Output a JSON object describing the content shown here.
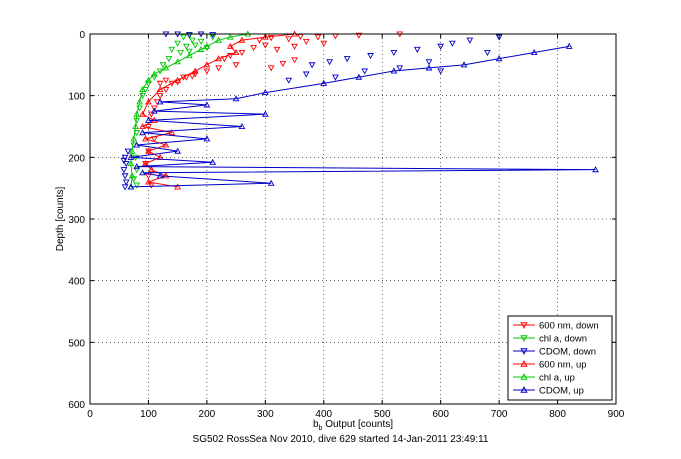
{
  "footer": "SG502 RossSea Nov 2010, dive 629 started 14-Jan-2011 23:49:11",
  "chart_data": {
    "type": "scatter",
    "xlabel_main": "b",
    "xlabel_sub": "b",
    "xlabel_rest": " Output [counts]",
    "ylabel": "Depth [counts]",
    "xlim": [
      0,
      900
    ],
    "ylim": [
      0,
      600
    ],
    "y_reversed": true,
    "grid": true,
    "grid_style": "dotted",
    "legend_position": "bottom-right",
    "xticks": [
      0,
      100,
      200,
      300,
      400,
      500,
      600,
      700,
      800,
      900
    ],
    "yticks": [
      0,
      100,
      200,
      300,
      400,
      500,
      600
    ],
    "series": [
      {
        "name": "600 nm, down",
        "color": "#ff0000",
        "marker": "triangle-down",
        "line": false,
        "points": [
          [
            530,
            0
          ],
          [
            460,
            2
          ],
          [
            420,
            3
          ],
          [
            390,
            5
          ],
          [
            360,
            4
          ],
          [
            340,
            8
          ],
          [
            310,
            6
          ],
          [
            290,
            10
          ],
          [
            400,
            15
          ],
          [
            370,
            12
          ],
          [
            350,
            20
          ],
          [
            320,
            25
          ],
          [
            300,
            18
          ],
          [
            280,
            22
          ],
          [
            260,
            30
          ],
          [
            240,
            35
          ],
          [
            230,
            40
          ],
          [
            350,
            42
          ],
          [
            330,
            48
          ],
          [
            310,
            55
          ],
          [
            250,
            50
          ],
          [
            220,
            55
          ],
          [
            200,
            60
          ],
          [
            180,
            65
          ],
          [
            160,
            70
          ],
          [
            140,
            80
          ],
          [
            130,
            90
          ],
          [
            120,
            100
          ],
          [
            115,
            110
          ],
          [
            110,
            120
          ],
          [
            105,
            130
          ],
          [
            100,
            150
          ],
          [
            110,
            170
          ],
          [
            100,
            190
          ],
          [
            95,
            210
          ],
          [
            100,
            230
          ],
          [
            105,
            245
          ],
          [
            120,
            80
          ],
          [
            130,
            75
          ],
          [
            150,
            78
          ],
          [
            165,
            70
          ],
          [
            175,
            68
          ]
        ]
      },
      {
        "name": "chl a, down",
        "color": "#00c800",
        "marker": "triangle-down",
        "line": false,
        "points": [
          [
            170,
            2
          ],
          [
            160,
            5
          ],
          [
            175,
            10
          ],
          [
            150,
            15
          ],
          [
            165,
            20
          ],
          [
            140,
            25
          ],
          [
            155,
            30
          ],
          [
            135,
            40
          ],
          [
            125,
            50
          ],
          [
            120,
            60
          ],
          [
            110,
            70
          ],
          [
            100,
            80
          ],
          [
            95,
            90
          ],
          [
            90,
            100
          ],
          [
            85,
            120
          ],
          [
            80,
            140
          ],
          [
            80,
            160
          ],
          [
            75,
            180
          ],
          [
            78,
            200
          ],
          [
            80,
            220
          ],
          [
            75,
            235
          ],
          [
            80,
            245
          ],
          [
            210,
            5
          ],
          [
            190,
            12
          ],
          [
            180,
            18
          ],
          [
            200,
            22
          ],
          [
            170,
            28
          ]
        ]
      },
      {
        "name": "CDOM, down",
        "color": "#0000c8",
        "marker": "triangle-down",
        "line": false,
        "points": [
          [
            700,
            5
          ],
          [
            650,
            10
          ],
          [
            620,
            15
          ],
          [
            600,
            20
          ],
          [
            560,
            25
          ],
          [
            520,
            30
          ],
          [
            480,
            35
          ],
          [
            440,
            40
          ],
          [
            410,
            45
          ],
          [
            380,
            50
          ],
          [
            680,
            30
          ],
          [
            580,
            45
          ],
          [
            530,
            55
          ],
          [
            470,
            60
          ],
          [
            420,
            70
          ],
          [
            370,
            65
          ],
          [
            340,
            75
          ],
          [
            600,
            60
          ],
          [
            130,
            0
          ],
          [
            150,
            0
          ],
          [
            170,
            1
          ],
          [
            190,
            0
          ],
          [
            210,
            1
          ],
          [
            60,
            200
          ],
          [
            62,
            210
          ],
          [
            58,
            220
          ],
          [
            60,
            230
          ],
          [
            62,
            240
          ],
          [
            60,
            248
          ],
          [
            65,
            190
          ],
          [
            58,
            205
          ]
        ]
      },
      {
        "name": "600 nm, up",
        "color": "#ff0000",
        "marker": "triangle-up",
        "line": true,
        "points": [
          [
            350,
            0
          ],
          [
            300,
            5
          ],
          [
            260,
            10
          ],
          [
            240,
            20
          ],
          [
            250,
            30
          ],
          [
            220,
            40
          ],
          [
            200,
            50
          ],
          [
            180,
            60
          ],
          [
            150,
            75
          ],
          [
            120,
            90
          ],
          [
            100,
            110
          ],
          [
            90,
            130
          ],
          [
            110,
            140
          ],
          [
            90,
            150
          ],
          [
            140,
            160
          ],
          [
            95,
            170
          ],
          [
            130,
            180
          ],
          [
            100,
            190
          ],
          [
            120,
            200
          ],
          [
            95,
            210
          ],
          [
            105,
            220
          ],
          [
            130,
            230
          ],
          [
            100,
            240
          ],
          [
            150,
            248
          ]
        ]
      },
      {
        "name": "chl a, up",
        "color": "#00c800",
        "marker": "triangle-up",
        "line": true,
        "points": [
          [
            270,
            0
          ],
          [
            240,
            5
          ],
          [
            220,
            10
          ],
          [
            200,
            20
          ],
          [
            190,
            25
          ],
          [
            170,
            35
          ],
          [
            150,
            45
          ],
          [
            130,
            55
          ],
          [
            110,
            65
          ],
          [
            100,
            75
          ],
          [
            90,
            90
          ],
          [
            85,
            110
          ],
          [
            80,
            130
          ],
          [
            78,
            150
          ],
          [
            75,
            170
          ],
          [
            72,
            190
          ],
          [
            70,
            210
          ],
          [
            72,
            230
          ],
          [
            70,
            248
          ]
        ]
      },
      {
        "name": "CDOM, up",
        "color": "#0000c8",
        "marker": "triangle-up",
        "line": true,
        "points": [
          [
            820,
            20
          ],
          [
            760,
            30
          ],
          [
            700,
            40
          ],
          [
            640,
            50
          ],
          [
            580,
            55
          ],
          [
            520,
            60
          ],
          [
            460,
            70
          ],
          [
            400,
            80
          ],
          [
            300,
            95
          ],
          [
            250,
            105
          ],
          [
            120,
            110
          ],
          [
            200,
            115
          ],
          [
            110,
            125
          ],
          [
            300,
            130
          ],
          [
            100,
            140
          ],
          [
            260,
            150
          ],
          [
            90,
            160
          ],
          [
            200,
            170
          ],
          [
            80,
            180
          ],
          [
            150,
            190
          ],
          [
            70,
            200
          ],
          [
            210,
            208
          ],
          [
            80,
            215
          ],
          [
            865,
            220
          ],
          [
            90,
            225
          ],
          [
            120,
            230
          ],
          [
            310,
            242
          ],
          [
            70,
            248
          ]
        ]
      }
    ]
  }
}
